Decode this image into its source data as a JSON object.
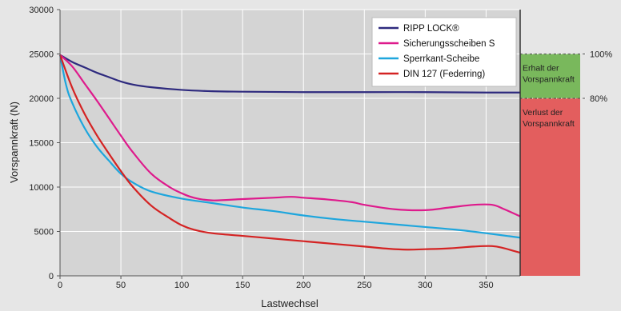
{
  "chart_data": {
    "type": "line",
    "xlabel": "Lastwechsel",
    "ylabel": "Vorspannkraft (N)",
    "xlim": [
      0,
      378
    ],
    "ylim": [
      0,
      30000
    ],
    "xticks": [
      0,
      50,
      100,
      150,
      200,
      250,
      300,
      350
    ],
    "yticks": [
      0,
      5000,
      10000,
      15000,
      20000,
      25000,
      30000
    ],
    "grid": true,
    "legend_position": "top-right",
    "series": [
      {
        "name": "RIPP LOCK®",
        "color": "#2e2a7e",
        "points": [
          [
            0,
            24900
          ],
          [
            10,
            24100
          ],
          [
            20,
            23500
          ],
          [
            30,
            22900
          ],
          [
            40,
            22400
          ],
          [
            50,
            21900
          ],
          [
            60,
            21550
          ],
          [
            75,
            21250
          ],
          [
            100,
            20950
          ],
          [
            125,
            20800
          ],
          [
            150,
            20750
          ],
          [
            200,
            20700
          ],
          [
            250,
            20700
          ],
          [
            300,
            20700
          ],
          [
            350,
            20650
          ],
          [
            378,
            20650
          ]
        ]
      },
      {
        "name": "Sicherungsscheiben S",
        "color": "#de1a8c",
        "points": [
          [
            0,
            24900
          ],
          [
            10,
            23600
          ],
          [
            20,
            21700
          ],
          [
            30,
            19800
          ],
          [
            40,
            17800
          ],
          [
            50,
            15800
          ],
          [
            60,
            13900
          ],
          [
            75,
            11500
          ],
          [
            90,
            10000
          ],
          [
            100,
            9300
          ],
          [
            110,
            8800
          ],
          [
            125,
            8500
          ],
          [
            150,
            8650
          ],
          [
            175,
            8800
          ],
          [
            190,
            8900
          ],
          [
            200,
            8800
          ],
          [
            220,
            8600
          ],
          [
            240,
            8300
          ],
          [
            250,
            8000
          ],
          [
            275,
            7500
          ],
          [
            300,
            7400
          ],
          [
            320,
            7700
          ],
          [
            340,
            8000
          ],
          [
            355,
            8000
          ],
          [
            365,
            7500
          ],
          [
            378,
            6700
          ]
        ]
      },
      {
        "name": "Sperrkant-Scheibe",
        "color": "#1ea6dd",
        "points": [
          [
            0,
            24900
          ],
          [
            5,
            21500
          ],
          [
            10,
            19500
          ],
          [
            20,
            16700
          ],
          [
            30,
            14600
          ],
          [
            40,
            13000
          ],
          [
            50,
            11500
          ],
          [
            60,
            10500
          ],
          [
            75,
            9500
          ],
          [
            100,
            8700
          ],
          [
            125,
            8200
          ],
          [
            150,
            7700
          ],
          [
            175,
            7300
          ],
          [
            200,
            6800
          ],
          [
            225,
            6400
          ],
          [
            250,
            6100
          ],
          [
            275,
            5800
          ],
          [
            300,
            5500
          ],
          [
            325,
            5200
          ],
          [
            350,
            4800
          ],
          [
            378,
            4300
          ]
        ]
      },
      {
        "name": "DIN 127 (Federring)",
        "color": "#d42323",
        "points": [
          [
            0,
            24900
          ],
          [
            10,
            21200
          ],
          [
            20,
            18300
          ],
          [
            30,
            15900
          ],
          [
            40,
            13800
          ],
          [
            50,
            11800
          ],
          [
            60,
            10000
          ],
          [
            75,
            7900
          ],
          [
            90,
            6500
          ],
          [
            100,
            5700
          ],
          [
            110,
            5200
          ],
          [
            125,
            4800
          ],
          [
            150,
            4500
          ],
          [
            175,
            4200
          ],
          [
            200,
            3900
          ],
          [
            225,
            3600
          ],
          [
            250,
            3300
          ],
          [
            270,
            3050
          ],
          [
            285,
            2950
          ],
          [
            300,
            3000
          ],
          [
            320,
            3100
          ],
          [
            340,
            3300
          ],
          [
            355,
            3350
          ],
          [
            365,
            3100
          ],
          [
            378,
            2600
          ]
        ]
      }
    ],
    "reference_lines": [
      {
        "value": 25000,
        "label": "100%"
      },
      {
        "value": 20000,
        "label": "80%"
      }
    ],
    "zones": [
      {
        "from": 20000,
        "to": 25000,
        "color": "#79b85c",
        "label_lines": [
          "Erhalt der",
          "Vorspannkraft"
        ]
      },
      {
        "from": 0,
        "to": 20000,
        "color": "#e35e5e",
        "label_lines": [
          "Verlust der",
          "Vorspannkraft"
        ]
      }
    ]
  }
}
